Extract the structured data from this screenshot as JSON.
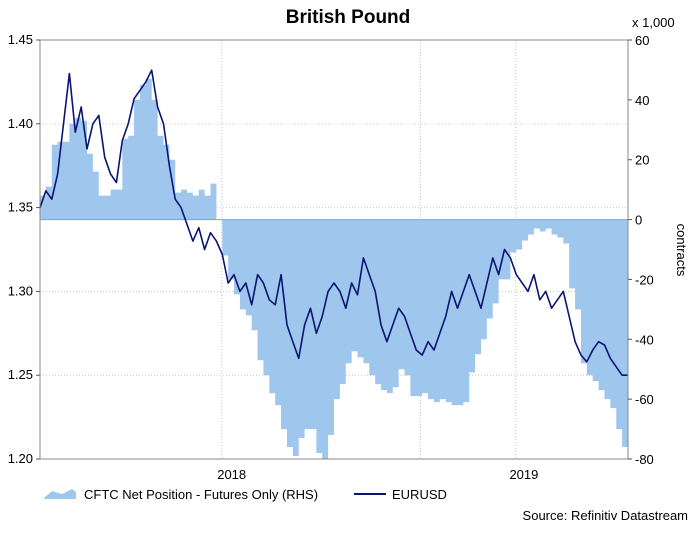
{
  "chart_data": {
    "type": "line",
    "title": "British Pound",
    "source": "Source: Refinitiv Datastream",
    "y_left": {
      "min": 1.2,
      "max": 1.45,
      "ticks": [
        "1.20",
        "1.25",
        "1.30",
        "1.35",
        "1.40",
        "1.45"
      ]
    },
    "y_right": {
      "min": -80,
      "max": 60,
      "ticks": [
        "-80",
        "-60",
        "-40",
        "-20",
        "0",
        "20",
        "40",
        "60"
      ],
      "label": "contracts",
      "unit": "x 1,000"
    },
    "x_ticks": [
      {
        "label": "2018",
        "t": 0.326
      },
      {
        "label": "2019",
        "t": 0.823
      }
    ],
    "x_dividers": [
      0.309,
      0.647,
      0.809
    ],
    "legend": {
      "area_label": "CFTC Net Position - Futures Only (RHS)",
      "line_label": "EURUSD"
    },
    "colors": {
      "area": "#9fc6ec",
      "line": "#0a1473",
      "grid": "#c9c9c9"
    },
    "series": [
      {
        "name": "CFTC Net Position - Futures Only (RHS)",
        "axis": "right",
        "kind": "area",
        "points": [
          [
            0.0,
            8
          ],
          [
            0.01,
            11
          ],
          [
            0.02,
            25
          ],
          [
            0.03,
            26
          ],
          [
            0.04,
            26
          ],
          [
            0.05,
            32
          ],
          [
            0.06,
            34
          ],
          [
            0.07,
            33
          ],
          [
            0.08,
            22
          ],
          [
            0.09,
            16
          ],
          [
            0.1,
            8
          ],
          [
            0.11,
            8
          ],
          [
            0.12,
            10
          ],
          [
            0.13,
            10
          ],
          [
            0.14,
            27
          ],
          [
            0.15,
            28
          ],
          [
            0.16,
            40
          ],
          [
            0.17,
            45
          ],
          [
            0.18,
            47
          ],
          [
            0.19,
            40
          ],
          [
            0.2,
            28
          ],
          [
            0.21,
            25
          ],
          [
            0.22,
            20
          ],
          [
            0.23,
            9
          ],
          [
            0.24,
            10
          ],
          [
            0.25,
            9
          ],
          [
            0.26,
            8
          ],
          [
            0.27,
            10
          ],
          [
            0.28,
            8
          ],
          [
            0.29,
            12
          ],
          [
            0.3,
            0
          ],
          [
            0.31,
            -12
          ],
          [
            0.32,
            -20
          ],
          [
            0.33,
            -25
          ],
          [
            0.34,
            -30
          ],
          [
            0.35,
            -32
          ],
          [
            0.36,
            -37
          ],
          [
            0.37,
            -47
          ],
          [
            0.38,
            -52
          ],
          [
            0.39,
            -58
          ],
          [
            0.4,
            -62
          ],
          [
            0.41,
            -70
          ],
          [
            0.42,
            -76
          ],
          [
            0.43,
            -79
          ],
          [
            0.44,
            -73
          ],
          [
            0.45,
            -70
          ],
          [
            0.46,
            -70
          ],
          [
            0.47,
            -78
          ],
          [
            0.48,
            -80
          ],
          [
            0.49,
            -72
          ],
          [
            0.5,
            -60
          ],
          [
            0.51,
            -55
          ],
          [
            0.52,
            -48
          ],
          [
            0.53,
            -44
          ],
          [
            0.54,
            -46
          ],
          [
            0.55,
            -48
          ],
          [
            0.56,
            -52
          ],
          [
            0.57,
            -55
          ],
          [
            0.58,
            -57
          ],
          [
            0.59,
            -58
          ],
          [
            0.6,
            -56
          ],
          [
            0.61,
            -50
          ],
          [
            0.62,
            -52
          ],
          [
            0.63,
            -59
          ],
          [
            0.64,
            -59
          ],
          [
            0.65,
            -58
          ],
          [
            0.66,
            -60
          ],
          [
            0.67,
            -61
          ],
          [
            0.68,
            -60
          ],
          [
            0.69,
            -61
          ],
          [
            0.7,
            -62
          ],
          [
            0.71,
            -62
          ],
          [
            0.72,
            -61
          ],
          [
            0.73,
            -51
          ],
          [
            0.74,
            -45
          ],
          [
            0.75,
            -40
          ],
          [
            0.76,
            -33
          ],
          [
            0.77,
            -28
          ],
          [
            0.78,
            -20
          ],
          [
            0.79,
            -20
          ],
          [
            0.8,
            -11
          ],
          [
            0.81,
            -10
          ],
          [
            0.82,
            -7
          ],
          [
            0.83,
            -5
          ],
          [
            0.84,
            -3
          ],
          [
            0.85,
            -4
          ],
          [
            0.86,
            -3
          ],
          [
            0.87,
            -5
          ],
          [
            0.88,
            -6
          ],
          [
            0.89,
            -8
          ],
          [
            0.9,
            -23
          ],
          [
            0.91,
            -30
          ],
          [
            0.92,
            -48
          ],
          [
            0.93,
            -52
          ],
          [
            0.94,
            -54
          ],
          [
            0.95,
            -57
          ],
          [
            0.96,
            -60
          ],
          [
            0.97,
            -63
          ],
          [
            0.98,
            -70
          ],
          [
            0.99,
            -76
          ],
          [
            1.0,
            -77
          ]
        ]
      },
      {
        "name": "EURUSD",
        "axis": "left",
        "kind": "line",
        "points": [
          [
            0.0,
            1.35
          ],
          [
            0.01,
            1.36
          ],
          [
            0.02,
            1.355
          ],
          [
            0.03,
            1.37
          ],
          [
            0.04,
            1.4
          ],
          [
            0.05,
            1.43
          ],
          [
            0.06,
            1.395
          ],
          [
            0.07,
            1.41
          ],
          [
            0.08,
            1.385
          ],
          [
            0.09,
            1.4
          ],
          [
            0.1,
            1.405
          ],
          [
            0.11,
            1.38
          ],
          [
            0.12,
            1.37
          ],
          [
            0.13,
            1.365
          ],
          [
            0.14,
            1.39
          ],
          [
            0.15,
            1.4
          ],
          [
            0.16,
            1.415
          ],
          [
            0.17,
            1.42
          ],
          [
            0.18,
            1.425
          ],
          [
            0.19,
            1.432
          ],
          [
            0.2,
            1.41
          ],
          [
            0.21,
            1.4
          ],
          [
            0.22,
            1.375
          ],
          [
            0.23,
            1.355
          ],
          [
            0.24,
            1.35
          ],
          [
            0.25,
            1.34
          ],
          [
            0.26,
            1.33
          ],
          [
            0.27,
            1.338
          ],
          [
            0.28,
            1.325
          ],
          [
            0.29,
            1.335
          ],
          [
            0.3,
            1.33
          ],
          [
            0.31,
            1.322
          ],
          [
            0.32,
            1.305
          ],
          [
            0.33,
            1.31
          ],
          [
            0.34,
            1.3
          ],
          [
            0.35,
            1.305
          ],
          [
            0.36,
            1.292
          ],
          [
            0.37,
            1.31
          ],
          [
            0.38,
            1.305
          ],
          [
            0.39,
            1.295
          ],
          [
            0.4,
            1.292
          ],
          [
            0.41,
            1.31
          ],
          [
            0.42,
            1.28
          ],
          [
            0.43,
            1.27
          ],
          [
            0.44,
            1.26
          ],
          [
            0.45,
            1.28
          ],
          [
            0.46,
            1.29
          ],
          [
            0.47,
            1.275
          ],
          [
            0.48,
            1.285
          ],
          [
            0.49,
            1.3
          ],
          [
            0.5,
            1.305
          ],
          [
            0.51,
            1.3
          ],
          [
            0.52,
            1.29
          ],
          [
            0.53,
            1.305
          ],
          [
            0.54,
            1.298
          ],
          [
            0.55,
            1.32
          ],
          [
            0.56,
            1.31
          ],
          [
            0.57,
            1.3
          ],
          [
            0.58,
            1.28
          ],
          [
            0.59,
            1.27
          ],
          [
            0.6,
            1.28
          ],
          [
            0.61,
            1.29
          ],
          [
            0.62,
            1.285
          ],
          [
            0.63,
            1.275
          ],
          [
            0.64,
            1.265
          ],
          [
            0.65,
            1.262
          ],
          [
            0.66,
            1.27
          ],
          [
            0.67,
            1.265
          ],
          [
            0.68,
            1.275
          ],
          [
            0.69,
            1.285
          ],
          [
            0.7,
            1.3
          ],
          [
            0.71,
            1.29
          ],
          [
            0.72,
            1.3
          ],
          [
            0.73,
            1.31
          ],
          [
            0.74,
            1.3
          ],
          [
            0.75,
            1.29
          ],
          [
            0.76,
            1.305
          ],
          [
            0.77,
            1.32
          ],
          [
            0.78,
            1.31
          ],
          [
            0.79,
            1.325
          ],
          [
            0.8,
            1.32
          ],
          [
            0.81,
            1.31
          ],
          [
            0.82,
            1.305
          ],
          [
            0.83,
            1.3
          ],
          [
            0.84,
            1.31
          ],
          [
            0.85,
            1.295
          ],
          [
            0.86,
            1.3
          ],
          [
            0.87,
            1.29
          ],
          [
            0.88,
            1.295
          ],
          [
            0.89,
            1.3
          ],
          [
            0.9,
            1.285
          ],
          [
            0.91,
            1.27
          ],
          [
            0.92,
            1.262
          ],
          [
            0.93,
            1.258
          ],
          [
            0.94,
            1.265
          ],
          [
            0.95,
            1.27
          ],
          [
            0.96,
            1.268
          ],
          [
            0.97,
            1.26
          ],
          [
            0.98,
            1.255
          ],
          [
            0.99,
            1.25
          ],
          [
            1.0,
            1.25
          ]
        ]
      }
    ]
  }
}
